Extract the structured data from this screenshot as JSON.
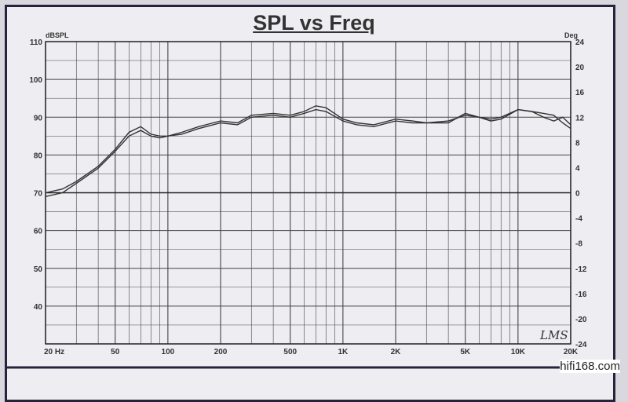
{
  "chart_data": {
    "type": "line",
    "title": "SPL vs Freq",
    "ylabel": "dBSPL",
    "y2label": "Deg",
    "xscale": "log",
    "xlim": [
      20,
      20000
    ],
    "ylim": [
      30,
      110
    ],
    "y2lim": [
      -24,
      24
    ],
    "grid": true,
    "x_ticks": [
      {
        "v": 20,
        "label": "20  Hz"
      },
      {
        "v": 50,
        "label": "50"
      },
      {
        "v": 100,
        "label": "100"
      },
      {
        "v": 200,
        "label": "200"
      },
      {
        "v": 500,
        "label": "500"
      },
      {
        "v": 1000,
        "label": "1K"
      },
      {
        "v": 2000,
        "label": "2K"
      },
      {
        "v": 5000,
        "label": "5K"
      },
      {
        "v": 10000,
        "label": "10K"
      },
      {
        "v": 20000,
        "label": "20K"
      }
    ],
    "y_ticks": [
      40,
      50,
      60,
      70,
      80,
      90,
      100,
      110
    ],
    "y2_ticks": [
      24,
      20,
      16,
      12,
      8,
      4,
      0,
      -4,
      -8,
      -12,
      -16,
      -20,
      -24
    ],
    "x": [
      20,
      25,
      30,
      40,
      50,
      60,
      70,
      80,
      90,
      100,
      120,
      150,
      200,
      250,
      300,
      400,
      500,
      600,
      700,
      800,
      1000,
      1200,
      1500,
      2000,
      2500,
      3000,
      4000,
      5000,
      6000,
      7000,
      8000,
      10000,
      12000,
      14000,
      16000,
      18000,
      20000
    ],
    "series": [
      {
        "values": [
          70,
          71,
          73,
          77,
          81.5,
          86,
          87.5,
          85.5,
          85,
          85,
          86,
          87.5,
          89,
          88.5,
          90.5,
          91,
          90.5,
          91.5,
          93,
          92.5,
          89.5,
          88.5,
          88,
          89.5,
          89,
          88.5,
          88.5,
          91,
          90,
          89.5,
          90,
          92,
          91.5,
          90,
          89,
          90,
          88
        ]
      },
      {
        "values": [
          69,
          70,
          72.5,
          76.5,
          81,
          85,
          86.5,
          85,
          84.5,
          85,
          85.5,
          87,
          88.5,
          88,
          90,
          90.5,
          90,
          91,
          92,
          91.5,
          89,
          88,
          87.5,
          89,
          88.5,
          88.5,
          89,
          90.5,
          90,
          89,
          89.5,
          92,
          91.5,
          91,
          90.5,
          88.5,
          87
        ]
      }
    ],
    "color": "#333333"
  },
  "logo": "LMS",
  "watermark": "hifi168.com"
}
